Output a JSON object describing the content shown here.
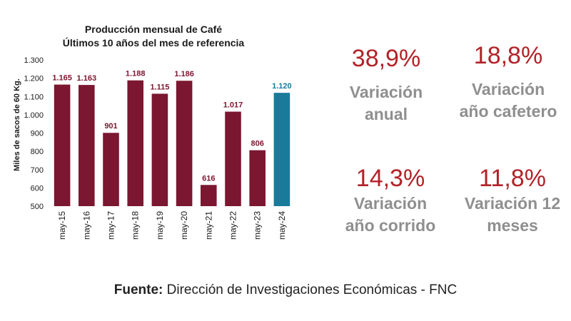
{
  "chart_data": {
    "type": "bar",
    "title": "Producción mensual de Café",
    "subtitle": "Últimos 10 años del mes de referencia",
    "ylabel": "Miles de sacos de 60 Kg.",
    "xlabel": "",
    "categories": [
      "may-15",
      "may-16",
      "may-17",
      "may-18",
      "may-19",
      "may-20",
      "may-21",
      "may-22",
      "may-23",
      "may-24"
    ],
    "values": [
      1165,
      1163,
      901,
      1188,
      1115,
      1186,
      616,
      1017,
      806,
      1120
    ],
    "data_labels": [
      "1.165",
      "1.163",
      "901",
      "1.188",
      "1.115",
      "1.186",
      "616",
      "1.017",
      "806",
      "1.120"
    ],
    "ylim": [
      500,
      1300
    ],
    "yticks": [
      500,
      600,
      700,
      800,
      900,
      1000,
      1100,
      1200,
      1300
    ],
    "ytick_labels": [
      "500",
      "600",
      "700",
      "800",
      "900",
      "1.000",
      "1.100",
      "1.200",
      "1.300"
    ],
    "grid": false,
    "colors": {
      "bar": "#7b1730",
      "highlight_bar": "#1a7a9a",
      "highlight_index": 9
    }
  },
  "stats": [
    {
      "value": "38,9%",
      "label_line1": "Variación",
      "label_line2": "anual"
    },
    {
      "value": "18,8%",
      "label_line1": "Variación",
      "label_line2": "año cafetero"
    },
    {
      "value": "14,3%",
      "label_line1": "Variación",
      "label_line2": "año corrido"
    },
    {
      "value": "11,8%",
      "label_line1": "Variación 12",
      "label_line2": "meses"
    }
  ],
  "source": {
    "label": "Fuente:",
    "text": "Dirección de Investigaciones Económicas - FNC"
  }
}
